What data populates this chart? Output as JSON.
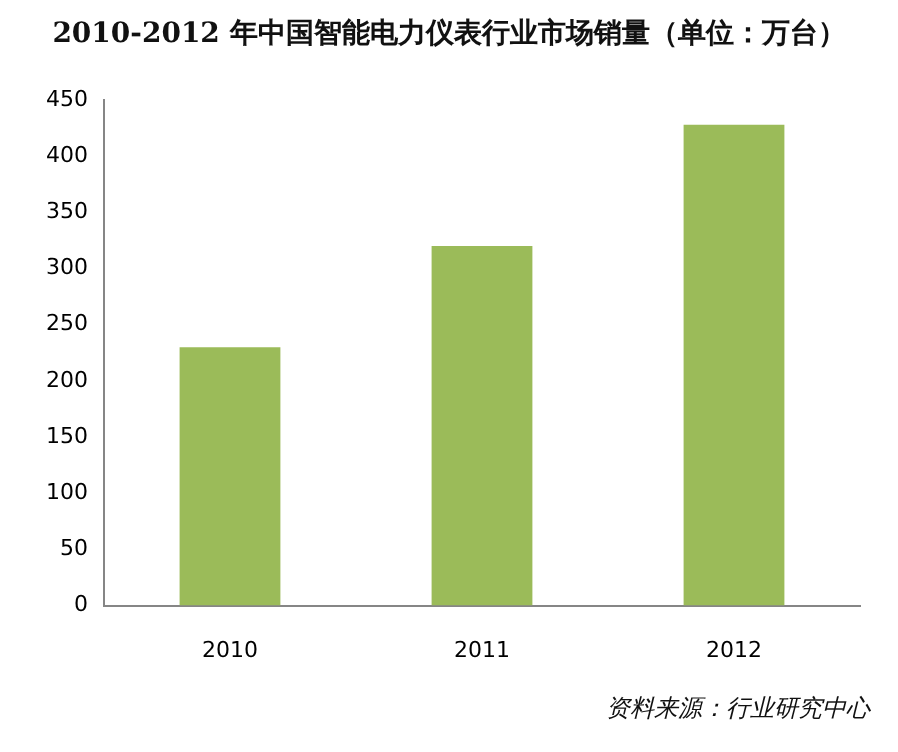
{
  "chart_data": {
    "type": "bar",
    "title": "2010-2012 年中国智能电力仪表行业市场销量（单位：万台）",
    "categories": [
      "2010",
      "2011",
      "2012"
    ],
    "values": [
      230,
      320,
      428
    ],
    "color": "#9bbb59",
    "ylim": [
      0,
      450
    ],
    "yticks": [
      0,
      50,
      100,
      150,
      200,
      250,
      300,
      350,
      400,
      450
    ],
    "grid": false,
    "legend": false,
    "annotations": [
      "资料来源：行业研究中心"
    ]
  }
}
